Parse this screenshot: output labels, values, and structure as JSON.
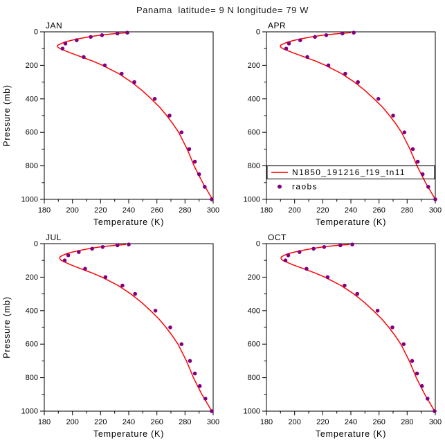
{
  "chart_data": {
    "type": "line",
    "title": "Panama  latitude= 9 N longitude= 79 W",
    "xlabel": "Temperature (K)",
    "ylabel": "Pressure (mb)",
    "xlim": [
      180,
      300
    ],
    "ylim": [
      1000,
      0
    ],
    "x_ticks": [
      180,
      200,
      220,
      240,
      260,
      280,
      300
    ],
    "y_ticks": [
      0,
      200,
      400,
      600,
      800,
      1000
    ],
    "grid": false,
    "model_color": "#ff0000",
    "obs_color": "#800080",
    "legend": {
      "entries": [
        {
          "label": "N1850_191216_f19_tn11",
          "type": "line",
          "color": "#ff0000"
        },
        {
          "label": "raobs",
          "type": "marker",
          "color": "#800080"
        }
      ],
      "position": "inside APR panel, lower half"
    },
    "panels": [
      {
        "label": "JAN",
        "show_legend": false,
        "model": {
          "name": "N1850_191216_f19_tn11",
          "pressure": [
            1000,
            950,
            900,
            850,
            800,
            750,
            700,
            650,
            600,
            550,
            500,
            450,
            400,
            350,
            300,
            250,
            200,
            175,
            150,
            125,
            100,
            90,
            80,
            70,
            60,
            50,
            40,
            30,
            20,
            10,
            5
          ],
          "temp": [
            299.5,
            296,
            292.5,
            289.5,
            286.5,
            284,
            281.5,
            278.5,
            275.5,
            271.5,
            267,
            262,
            256,
            249.5,
            242,
            233,
            221.5,
            214.5,
            206.5,
            198.5,
            191,
            189.5,
            189.5,
            192,
            195,
            199.5,
            205,
            211.5,
            220,
            231,
            239
          ]
        },
        "obs": {
          "name": "raobs",
          "pressure": [
            1000,
            925,
            850,
            775,
            700,
            600,
            500,
            400,
            300,
            250,
            200,
            150,
            100,
            70,
            50,
            30,
            20,
            10,
            5
          ],
          "temp": [
            299,
            294,
            290,
            287,
            283,
            277.5,
            269,
            258.5,
            244,
            235,
            223,
            208,
            193,
            195,
            203,
            213,
            221,
            232,
            239
          ]
        }
      },
      {
        "label": "APR",
        "show_legend": true,
        "model": {
          "name": "N1850_191216_f19_tn11",
          "pressure": [
            1000,
            950,
            900,
            850,
            800,
            750,
            700,
            650,
            600,
            550,
            500,
            450,
            400,
            350,
            300,
            250,
            200,
            175,
            150,
            125,
            100,
            90,
            80,
            70,
            60,
            50,
            40,
            30,
            20,
            10,
            5
          ],
          "temp": [
            300,
            296.5,
            293,
            290,
            287,
            284.5,
            282,
            279,
            276,
            272,
            267.5,
            262.5,
            256.5,
            250,
            242.5,
            233.5,
            222,
            215,
            207,
            199,
            191.5,
            190,
            190,
            192.5,
            195.5,
            200,
            205.5,
            212,
            220.5,
            232,
            240
          ]
        },
        "obs": {
          "name": "raobs",
          "pressure": [
            1000,
            925,
            850,
            775,
            700,
            600,
            500,
            400,
            300,
            250,
            200,
            150,
            100,
            70,
            50,
            30,
            20,
            10,
            5
          ],
          "temp": [
            300,
            295,
            291,
            287.5,
            284,
            278,
            270,
            259.5,
            245,
            236,
            224,
            209,
            194,
            196,
            204,
            214.5,
            222.5,
            234,
            242
          ]
        }
      },
      {
        "label": "JUL",
        "show_legend": false,
        "model": {
          "name": "N1850_191216_f19_tn11",
          "pressure": [
            1000,
            950,
            900,
            850,
            800,
            750,
            700,
            650,
            600,
            550,
            500,
            450,
            400,
            350,
            300,
            250,
            200,
            175,
            150,
            125,
            100,
            90,
            80,
            70,
            60,
            50,
            40,
            30,
            20,
            10,
            5
          ],
          "temp": [
            299,
            295.5,
            292,
            289,
            286,
            283.5,
            281,
            278,
            275,
            271,
            266.5,
            261.5,
            255.5,
            249,
            241.5,
            232.5,
            221,
            214,
            206,
            198.5,
            192,
            191,
            191,
            193,
            196,
            200,
            205.5,
            211.5,
            219.5,
            230.5,
            238
          ]
        },
        "obs": {
          "name": "raobs",
          "pressure": [
            1000,
            925,
            850,
            775,
            700,
            600,
            500,
            400,
            300,
            250,
            200,
            150,
            100,
            70,
            50,
            30,
            20,
            10,
            5
          ],
          "temp": [
            299,
            294.5,
            290.5,
            287,
            283.5,
            277.5,
            269.5,
            259,
            244.5,
            235.5,
            223.5,
            209,
            194.5,
            197,
            204.5,
            214,
            221.5,
            232,
            240
          ]
        }
      },
      {
        "label": "OCT",
        "show_legend": false,
        "model": {
          "name": "N1850_191216_f19_tn11",
          "pressure": [
            1000,
            950,
            900,
            850,
            800,
            750,
            700,
            650,
            600,
            550,
            500,
            450,
            400,
            350,
            300,
            250,
            200,
            175,
            150,
            125,
            100,
            90,
            80,
            70,
            60,
            50,
            40,
            30,
            20,
            10,
            5
          ],
          "temp": [
            299.5,
            296,
            292.5,
            289.5,
            286.5,
            284,
            281.5,
            278.5,
            275.5,
            271.5,
            267,
            262,
            256,
            249.5,
            242,
            233,
            221.5,
            214.5,
            206.5,
            198.5,
            191.5,
            190.5,
            190.5,
            192.5,
            195.5,
            200,
            205.5,
            212,
            220,
            231,
            239
          ]
        },
        "obs": {
          "name": "raobs",
          "pressure": [
            1000,
            925,
            850,
            775,
            700,
            600,
            500,
            400,
            300,
            250,
            200,
            150,
            100,
            70,
            50,
            30,
            20,
            10,
            5
          ],
          "temp": [
            299.5,
            294.5,
            290.5,
            287,
            283.5,
            277.5,
            269.5,
            259,
            244.5,
            235.5,
            223.5,
            208.5,
            193.5,
            195.5,
            203.5,
            213.5,
            221,
            232.5,
            241
          ]
        }
      }
    ]
  }
}
